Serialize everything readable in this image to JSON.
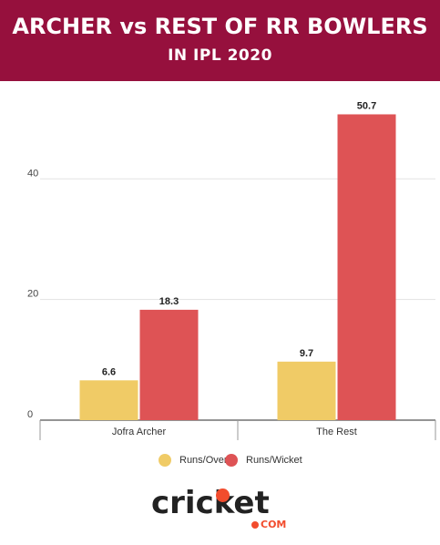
{
  "header": {
    "title": "ARCHER vs REST OF RR BOWLERS",
    "subtitle": "IN IPL 2020"
  },
  "colors": {
    "header_bg": "#96103d",
    "runs_over": "#f0cb66",
    "runs_wicket": "#de5355",
    "logo_accent": "#f24c2d"
  },
  "chart_data": {
    "type": "bar",
    "categories": [
      "Jofra Archer",
      "The Rest"
    ],
    "series": [
      {
        "name": "Runs/Over",
        "values": [
          6.6,
          9.7
        ],
        "color": "#f0cb66"
      },
      {
        "name": "Runs/Wicket",
        "values": [
          18.3,
          50.7
        ],
        "color": "#de5355"
      }
    ],
    "y_ticks": [
      0,
      20,
      40
    ],
    "ylim": [
      0,
      55
    ],
    "grid": true,
    "legend_position": "bottom",
    "xlabel": "",
    "ylabel": ""
  },
  "logo": {
    "brand": "cricket",
    "suffix": "COM"
  }
}
